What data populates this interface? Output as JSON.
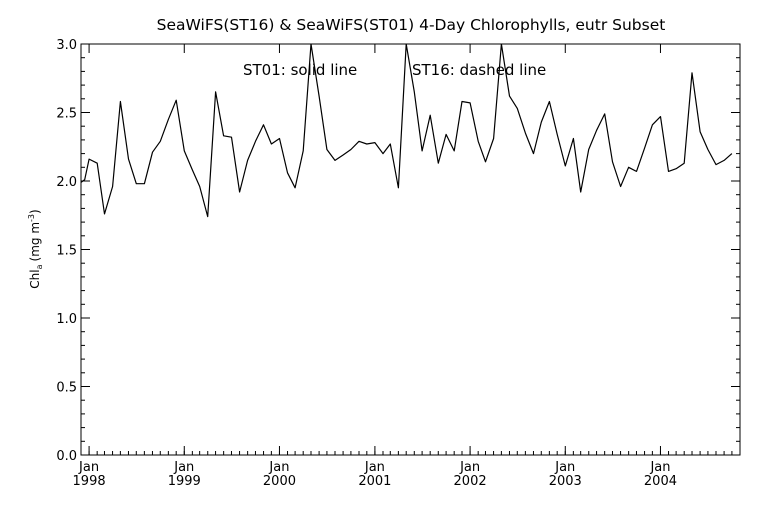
{
  "chart_data": {
    "type": "line",
    "title": "SeaWiFS(ST16) & SeaWiFS(ST01) 4-Day Chlorophylls, eutr Subset",
    "annotation_left": "ST01: solid line",
    "annotation_right": "ST16: dashed line",
    "ylabel_main": "Chl",
    "ylabel_sub": "a",
    "ylabel_unit": "(mg m",
    "ylabel_sup": "-3",
    "ylabel_close": ")",
    "xlim": [
      "1997-12-01",
      "2004-11-01"
    ],
    "ylim": [
      0.0,
      3.0
    ],
    "yticks": [
      "0.0",
      "0.5",
      "1.0",
      "1.5",
      "2.0",
      "2.5",
      "3.0"
    ],
    "xticks": [
      {
        "month": "Jan",
        "year": "1998",
        "date": "1998-01-01"
      },
      {
        "month": "Jan",
        "year": "1999",
        "date": "1999-01-01"
      },
      {
        "month": "Jan",
        "year": "2000",
        "date": "2000-01-01"
      },
      {
        "month": "Jan",
        "year": "2001",
        "date": "2001-01-01"
      },
      {
        "month": "Jan",
        "year": "2002",
        "date": "2002-01-01"
      },
      {
        "month": "Jan",
        "year": "2003",
        "date": "2003-01-01"
      },
      {
        "month": "Jan",
        "year": "2004",
        "date": "2004-01-01"
      }
    ],
    "grid": false,
    "series": [
      {
        "name": "ST01",
        "style": "solid",
        "color": "#000000",
        "points": [
          [
            "1997-12-01",
            1.99
          ],
          [
            "1997-12-15",
            2.01
          ],
          [
            "1998-01-01",
            2.16
          ],
          [
            "1998-02-01",
            2.13
          ],
          [
            "1998-03-01",
            1.76
          ],
          [
            "1998-04-01",
            1.96
          ],
          [
            "1998-05-01",
            2.58
          ],
          [
            "1998-06-01",
            2.16
          ],
          [
            "1998-07-01",
            1.98
          ],
          [
            "1998-08-01",
            1.98
          ],
          [
            "1998-09-01",
            2.21
          ],
          [
            "1998-10-01",
            2.29
          ],
          [
            "1998-11-01",
            2.45
          ],
          [
            "1998-12-01",
            2.59
          ],
          [
            "1999-01-01",
            2.22
          ],
          [
            "1999-02-01",
            2.08
          ],
          [
            "1999-03-01",
            1.96
          ],
          [
            "1999-04-01",
            1.74
          ],
          [
            "1999-05-01",
            2.65
          ],
          [
            "1999-06-01",
            2.33
          ],
          [
            "1999-07-01",
            2.32
          ],
          [
            "1999-08-01",
            1.92
          ],
          [
            "1999-09-01",
            2.15
          ],
          [
            "1999-10-01",
            2.29
          ],
          [
            "1999-11-01",
            2.41
          ],
          [
            "1999-12-01",
            2.27
          ],
          [
            "2000-01-01",
            2.31
          ],
          [
            "2000-02-01",
            2.06
          ],
          [
            "2000-03-01",
            1.95
          ],
          [
            "2000-04-01",
            2.22
          ],
          [
            "2000-05-01",
            3.0
          ],
          [
            "2000-06-01",
            2.62
          ],
          [
            "2000-07-01",
            2.23
          ],
          [
            "2000-08-01",
            2.15
          ],
          [
            "2000-09-01",
            2.19
          ],
          [
            "2000-10-01",
            2.23
          ],
          [
            "2000-11-01",
            2.29
          ],
          [
            "2000-12-01",
            2.27
          ],
          [
            "2001-01-01",
            2.28
          ],
          [
            "2001-02-01",
            2.2
          ],
          [
            "2001-03-01",
            2.27
          ],
          [
            "2001-04-01",
            1.95
          ],
          [
            "2001-05-01",
            3.0
          ],
          [
            "2001-06-01",
            2.65
          ],
          [
            "2001-07-01",
            2.22
          ],
          [
            "2001-08-01",
            2.48
          ],
          [
            "2001-09-01",
            2.13
          ],
          [
            "2001-10-01",
            2.34
          ],
          [
            "2001-11-01",
            2.22
          ],
          [
            "2001-12-01",
            2.58
          ],
          [
            "2002-01-01",
            2.57
          ],
          [
            "2002-02-01",
            2.29
          ],
          [
            "2002-03-01",
            2.14
          ],
          [
            "2002-04-01",
            2.31
          ],
          [
            "2002-05-01",
            3.0
          ],
          [
            "2002-06-01",
            2.62
          ],
          [
            "2002-07-01",
            2.53
          ],
          [
            "2002-08-01",
            2.35
          ],
          [
            "2002-09-01",
            2.2
          ],
          [
            "2002-10-01",
            2.43
          ],
          [
            "2002-11-01",
            2.58
          ],
          [
            "2002-12-01",
            2.34
          ],
          [
            "2003-01-01",
            2.11
          ],
          [
            "2003-02-01",
            2.31
          ],
          [
            "2003-03-01",
            1.92
          ],
          [
            "2003-04-01",
            2.23
          ],
          [
            "2003-05-01",
            2.37
          ],
          [
            "2003-06-01",
            2.49
          ],
          [
            "2003-07-01",
            2.14
          ],
          [
            "2003-08-01",
            1.96
          ],
          [
            "2003-09-01",
            2.1
          ],
          [
            "2003-10-01",
            2.07
          ],
          [
            "2003-11-01",
            2.24
          ],
          [
            "2003-12-01",
            2.41
          ],
          [
            "2004-01-01",
            2.47
          ],
          [
            "2004-02-01",
            2.07
          ],
          [
            "2004-03-01",
            2.09
          ],
          [
            "2004-04-01",
            2.13
          ],
          [
            "2004-05-01",
            2.79
          ],
          [
            "2004-06-01",
            2.36
          ],
          [
            "2004-07-01",
            2.23
          ],
          [
            "2004-08-01",
            2.12
          ],
          [
            "2004-09-01",
            2.15
          ],
          [
            "2004-10-01",
            2.2
          ]
        ]
      }
    ]
  }
}
